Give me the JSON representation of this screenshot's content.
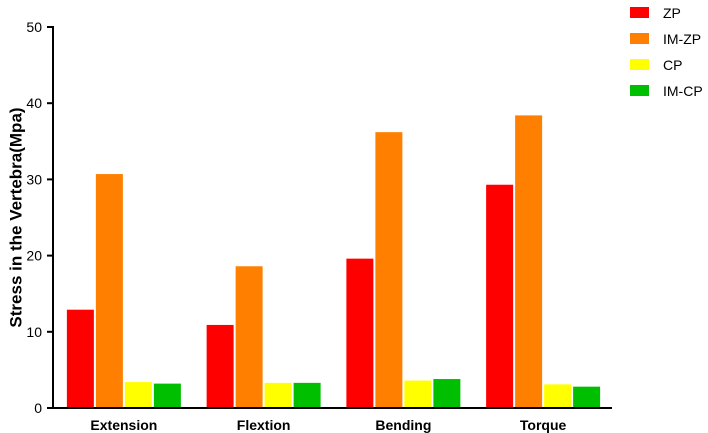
{
  "chart_data": {
    "type": "bar",
    "title": "",
    "xlabel": "",
    "ylabel": "Stress in the Vertebra(Mpa)",
    "ylim": [
      0,
      50
    ],
    "yticks": [
      0,
      10,
      20,
      30,
      40,
      50
    ],
    "categories": [
      "Extension",
      "Flextion",
      "Bending",
      "Torque"
    ],
    "series": [
      {
        "name": "ZP",
        "color": "#ff0000",
        "values": [
          12.9,
          10.9,
          19.6,
          29.3
        ]
      },
      {
        "name": "IM-ZP",
        "color": "#ff8000",
        "values": [
          30.7,
          18.6,
          36.2,
          38.4
        ]
      },
      {
        "name": "CP",
        "color": "#ffff00",
        "values": [
          3.4,
          3.3,
          3.6,
          3.1
        ]
      },
      {
        "name": "IM-CP",
        "color": "#00bf00",
        "values": [
          3.2,
          3.3,
          3.8,
          2.8
        ]
      }
    ],
    "grid": false,
    "legend_position": "top-right"
  }
}
